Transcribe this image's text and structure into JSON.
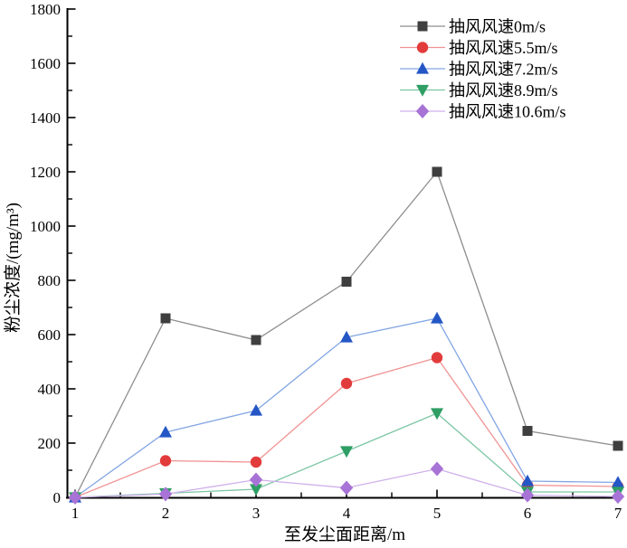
{
  "chart_data": {
    "type": "line",
    "title": "",
    "xlabel": "至发尘面距离/m",
    "ylabel": "粉尘浓度/(mg/m³)",
    "xlim": [
      1,
      7
    ],
    "ylim": [
      0,
      1800
    ],
    "xticks": [
      1,
      2,
      3,
      4,
      5,
      6,
      7
    ],
    "yticks": [
      0,
      200,
      400,
      600,
      800,
      1000,
      1200,
      1400,
      1600,
      1800
    ],
    "x_minor_step": 0.5,
    "y_minor_step": 100,
    "grid": false,
    "legend_position": "top-right",
    "axis_color": "#000000",
    "x": [
      1,
      2,
      3,
      4,
      5,
      6,
      7
    ],
    "series": [
      {
        "name": "抽风风速0m/s",
        "marker": "square",
        "marker_color": "#3f3f3f",
        "line_color": "#8e8e8e",
        "values": [
          0,
          660,
          580,
          795,
          1200,
          245,
          190
        ]
      },
      {
        "name": "抽风风速5.5m/s",
        "marker": "circle",
        "marker_color": "#e23b3b",
        "line_color": "#f09393",
        "values": [
          0,
          135,
          130,
          420,
          515,
          45,
          40
        ]
      },
      {
        "name": "抽风风速7.2m/s",
        "marker": "triangle-up",
        "marker_color": "#2457c5",
        "line_color": "#83a6e4",
        "values": [
          0,
          240,
          320,
          590,
          660,
          60,
          55
        ]
      },
      {
        "name": "抽风风速8.9m/s",
        "marker": "triangle-down",
        "marker_color": "#2f9e64",
        "line_color": "#7cc6a4",
        "values": [
          0,
          15,
          30,
          170,
          310,
          20,
          20
        ]
      },
      {
        "name": "抽风风速10.6m/s",
        "marker": "diamond",
        "marker_color": "#a873d6",
        "line_color": "#cfb0ea",
        "values": [
          0,
          12,
          65,
          35,
          105,
          8,
          3
        ]
      }
    ]
  }
}
